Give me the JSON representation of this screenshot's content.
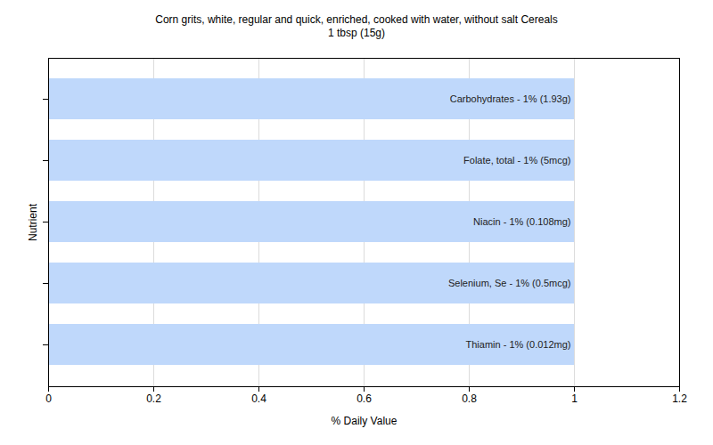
{
  "chart_data": {
    "type": "bar",
    "orientation": "horizontal",
    "title": "Corn grits, white, regular and quick, enriched, cooked with water, without salt Cereals",
    "subtitle": "1 tbsp (15g)",
    "x_label": "% Daily Value",
    "y_label": "Nutrient",
    "categories": [
      "Carbohydrates - 1% (1.93g)",
      "Folate, total - 1% (5mcg)",
      "Niacin - 1% (0.108mg)",
      "Selenium, Se - 1% (0.5mcg)",
      "Thiamin - 1% (0.012mg)"
    ],
    "values": [
      1,
      1,
      1,
      1,
      1
    ],
    "color": "#bfd8fb",
    "xlim": [
      0,
      1.2
    ],
    "xticks": [
      0,
      0.2,
      0.4,
      0.6,
      0.8,
      1,
      1.2
    ],
    "grid": true,
    "tick_labels": "x"
  }
}
